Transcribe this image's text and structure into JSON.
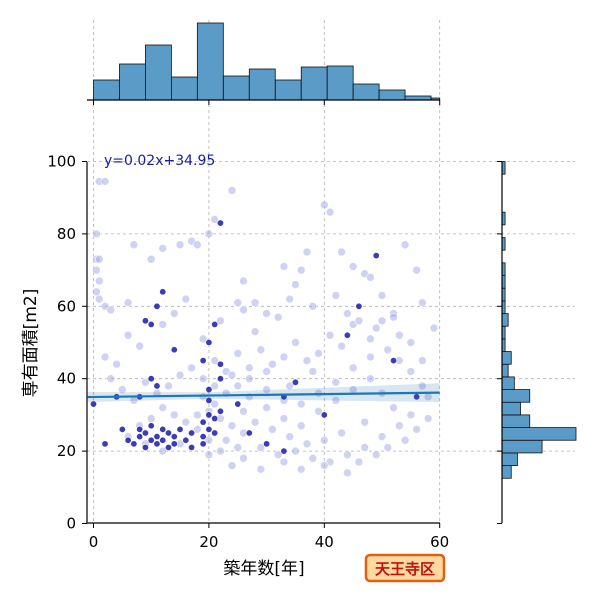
{
  "chart_data": {
    "type": "scatter",
    "xlabel": "築年数[年]",
    "ylabel": "専有面積[m2]",
    "xlim": [
      -1,
      60
    ],
    "ylim": [
      0,
      100
    ],
    "x_ticks": [
      0,
      20,
      40,
      60
    ],
    "y_ticks": [
      0,
      20,
      40,
      60,
      80,
      100
    ],
    "grid": true,
    "regression": {
      "label": "y=0.02x+34.95",
      "slope": 0.02,
      "intercept": 34.95,
      "color": "#1f77b4"
    },
    "colors": {
      "point_dark": "#1a1aa8",
      "point_light": "#a8aee6",
      "hist_fill": "#5b9bc8"
    },
    "x_hist": {
      "bin_edges": [
        0,
        4.5,
        9,
        13.5,
        18,
        22.5,
        27,
        31.5,
        36,
        40.5,
        45,
        49.5,
        54,
        58.5,
        60
      ],
      "heights": [
        20,
        36,
        55,
        23,
        77,
        24,
        31,
        20,
        33,
        34,
        16,
        10,
        4,
        2
      ]
    },
    "y_hist": {
      "bin_edges": [
        12.5,
        16,
        19.5,
        23,
        26.5,
        30,
        33.5,
        37,
        40.5,
        44,
        47.5,
        51,
        54.5,
        58,
        61.5,
        65,
        68.5,
        72,
        75.5,
        79,
        82.5,
        86,
        89.5,
        93,
        96.5,
        100
      ],
      "counts": [
        3,
        5,
        13,
        24,
        9,
        6,
        9,
        4,
        2,
        3,
        1,
        1,
        2,
        1,
        1,
        1,
        1,
        0,
        1,
        0,
        1,
        0,
        0,
        0,
        1
      ]
    },
    "points": [
      [
        1,
        94.5,
        0
      ],
      [
        2,
        94.5,
        0
      ],
      [
        0.5,
        80,
        0
      ],
      [
        0.5,
        73,
        0
      ],
      [
        1,
        73,
        0
      ],
      [
        0.5,
        70,
        0
      ],
      [
        1,
        67,
        0
      ],
      [
        0.5,
        64,
        0
      ],
      [
        1,
        62,
        0
      ],
      [
        2,
        60,
        0
      ],
      [
        3,
        59,
        0
      ],
      [
        6,
        61,
        0
      ],
      [
        7,
        77,
        0
      ],
      [
        10,
        73,
        0
      ],
      [
        12,
        76,
        0
      ],
      [
        15,
        77,
        0
      ],
      [
        17,
        78,
        0
      ],
      [
        18,
        77,
        0
      ],
      [
        20,
        80,
        0
      ],
      [
        21,
        84,
        0
      ],
      [
        24,
        92,
        0
      ],
      [
        26,
        67,
        0
      ],
      [
        25,
        61,
        0
      ],
      [
        28,
        61,
        0
      ],
      [
        30,
        58,
        0
      ],
      [
        33,
        71,
        0
      ],
      [
        35,
        66,
        0
      ],
      [
        36,
        70,
        0
      ],
      [
        37,
        75,
        0
      ],
      [
        40,
        88,
        0
      ],
      [
        41,
        86,
        0
      ],
      [
        43,
        75,
        0
      ],
      [
        45,
        71,
        0
      ],
      [
        47,
        69,
        0
      ],
      [
        48,
        68,
        0
      ],
      [
        50,
        63,
        0
      ],
      [
        52,
        58,
        0
      ],
      [
        54,
        77,
        0
      ],
      [
        56,
        70,
        0
      ],
      [
        59,
        54,
        0
      ],
      [
        57,
        61,
        0
      ],
      [
        52,
        57,
        0
      ],
      [
        48,
        51,
        0
      ],
      [
        45,
        55,
        0
      ],
      [
        43,
        49,
        0
      ],
      [
        41,
        52,
        0
      ],
      [
        39,
        47,
        0
      ],
      [
        37,
        45,
        0
      ],
      [
        35,
        50,
        0
      ],
      [
        33,
        46,
        0
      ],
      [
        31,
        44,
        0
      ],
      [
        29,
        48,
        0
      ],
      [
        27,
        43,
        0
      ],
      [
        25,
        47,
        0
      ],
      [
        23,
        42,
        0
      ],
      [
        21,
        45,
        0
      ],
      [
        19,
        40,
        0
      ],
      [
        17,
        43,
        0
      ],
      [
        15,
        41,
        0
      ],
      [
        13,
        38,
        0
      ],
      [
        11,
        36,
        0
      ],
      [
        9,
        39,
        0
      ],
      [
        7,
        34,
        0
      ],
      [
        5,
        37,
        0
      ],
      [
        3,
        40,
        0
      ],
      [
        2,
        46,
        0
      ],
      [
        4,
        44,
        0
      ],
      [
        6,
        52,
        0
      ],
      [
        8,
        49,
        0
      ],
      [
        12,
        55,
        0
      ],
      [
        14,
        58,
        0
      ],
      [
        16,
        62,
        0
      ],
      [
        19,
        51,
        0
      ],
      [
        22,
        56,
        0
      ],
      [
        26,
        59,
        0
      ],
      [
        28,
        53,
        0
      ],
      [
        32,
        57,
        0
      ],
      [
        34,
        62,
        0
      ],
      [
        38,
        60,
        0
      ],
      [
        42,
        63,
        0
      ],
      [
        44,
        58,
        0
      ],
      [
        46,
        56,
        0
      ],
      [
        49,
        54,
        0
      ],
      [
        51,
        48,
        0
      ],
      [
        53,
        45,
        0
      ],
      [
        55,
        42,
        0
      ],
      [
        57,
        38,
        0
      ],
      [
        58,
        35,
        0
      ],
      [
        55,
        30,
        0
      ],
      [
        53,
        27,
        0
      ],
      [
        50,
        24,
        0
      ],
      [
        47,
        21,
        0
      ],
      [
        44,
        19,
        0
      ],
      [
        41,
        17,
        0
      ],
      [
        38,
        18,
        0
      ],
      [
        35,
        20,
        0
      ],
      [
        32,
        19,
        0
      ],
      [
        29,
        21,
        0
      ],
      [
        26,
        18,
        0
      ],
      [
        24,
        16,
        0
      ],
      [
        22,
        20,
        0
      ],
      [
        20,
        23,
        0
      ],
      [
        18,
        26,
        0
      ],
      [
        16,
        28,
        0
      ],
      [
        14,
        30,
        0
      ],
      [
        12,
        32,
        0
      ],
      [
        10,
        29,
        0
      ],
      [
        8,
        27,
        0
      ],
      [
        6,
        24,
        0
      ],
      [
        9,
        22,
        0
      ],
      [
        12,
        20,
        0
      ],
      [
        15,
        22,
        0
      ],
      [
        18,
        30,
        0
      ],
      [
        21,
        33,
        0
      ],
      [
        23,
        36,
        0
      ],
      [
        25,
        38,
        0
      ],
      [
        27,
        35,
        0
      ],
      [
        30,
        32,
        0
      ],
      [
        33,
        29,
        0
      ],
      [
        36,
        27,
        0
      ],
      [
        39,
        31,
        0
      ],
      [
        42,
        34,
        0
      ],
      [
        45,
        37,
        0
      ],
      [
        48,
        40,
        0
      ],
      [
        50,
        36,
        0
      ],
      [
        52,
        32,
        0
      ],
      [
        47,
        28,
        0
      ],
      [
        43,
        25,
        0
      ],
      [
        40,
        23,
        0
      ],
      [
        37,
        22,
        0
      ],
      [
        34,
        24,
        0
      ],
      [
        31,
        26,
        0
      ],
      [
        28,
        28,
        0
      ],
      [
        26,
        25,
        0
      ],
      [
        24,
        27,
        0
      ],
      [
        22,
        29,
        0
      ],
      [
        20,
        31,
        0
      ],
      [
        19,
        35,
        0
      ],
      [
        21,
        38,
        0
      ],
      [
        24,
        41,
        0
      ],
      [
        27,
        40,
        0
      ],
      [
        30,
        37,
        0
      ],
      [
        33,
        34,
        0
      ],
      [
        36,
        33,
        0
      ],
      [
        39,
        36,
        0
      ],
      [
        42,
        39,
        0
      ],
      [
        45,
        43,
        0
      ],
      [
        48,
        46,
        0
      ],
      [
        38,
        42,
        0
      ],
      [
        34,
        38,
        0
      ],
      [
        30,
        42,
        0
      ],
      [
        26,
        31,
        0
      ],
      [
        23,
        23,
        0
      ],
      [
        20,
        19,
        0
      ],
      [
        25,
        21,
        0
      ],
      [
        29,
        15,
        0
      ],
      [
        33,
        17,
        0
      ],
      [
        36,
        15,
        0
      ],
      [
        40,
        16,
        0
      ],
      [
        44,
        14,
        0
      ],
      [
        46,
        17,
        0
      ],
      [
        49,
        19,
        0
      ],
      [
        51,
        21,
        0
      ],
      [
        54,
        23,
        0
      ],
      [
        56,
        26,
        0
      ],
      [
        58,
        29,
        0
      ],
      [
        57,
        45,
        0
      ],
      [
        55,
        50,
        0
      ],
      [
        53,
        52,
        0
      ],
      [
        50,
        56,
        0
      ],
      [
        2,
        22,
        1
      ],
      [
        5,
        26,
        1
      ],
      [
        6,
        23,
        1
      ],
      [
        7,
        22,
        1
      ],
      [
        8,
        24,
        1
      ],
      [
        8,
        26,
        1
      ],
      [
        9,
        21,
        1
      ],
      [
        9,
        25,
        1
      ],
      [
        10,
        23,
        1
      ],
      [
        10,
        27,
        1
      ],
      [
        11,
        22,
        1
      ],
      [
        11,
        24,
        1
      ],
      [
        12,
        26,
        1
      ],
      [
        12,
        23,
        1
      ],
      [
        13,
        21,
        1
      ],
      [
        13,
        25,
        1
      ],
      [
        14,
        22,
        1
      ],
      [
        14,
        24,
        1
      ],
      [
        15,
        26,
        1
      ],
      [
        16,
        23,
        1
      ],
      [
        17,
        21,
        1
      ],
      [
        17,
        25,
        1
      ],
      [
        19,
        22,
        1
      ],
      [
        19,
        24,
        1
      ],
      [
        19,
        28,
        1
      ],
      [
        20,
        26,
        1
      ],
      [
        20,
        30,
        1
      ],
      [
        20,
        34,
        1
      ],
      [
        20,
        37,
        1
      ],
      [
        21,
        25,
        1
      ],
      [
        21,
        29,
        1
      ],
      [
        22,
        31,
        1
      ],
      [
        22,
        40,
        1
      ],
      [
        22,
        44,
        1
      ],
      [
        19,
        45,
        1
      ],
      [
        20,
        50,
        1
      ],
      [
        21,
        55,
        1
      ],
      [
        22,
        83,
        1
      ],
      [
        9,
        56,
        1
      ],
      [
        10,
        55,
        1
      ],
      [
        11,
        60,
        1
      ],
      [
        12,
        64,
        1
      ],
      [
        14,
        48,
        1
      ],
      [
        11,
        38,
        1
      ],
      [
        8,
        35,
        1
      ],
      [
        10,
        40,
        1
      ],
      [
        25,
        33,
        1
      ],
      [
        27,
        25,
        1
      ],
      [
        30,
        22,
        1
      ],
      [
        33,
        35,
        1
      ],
      [
        35,
        39,
        1
      ],
      [
        40,
        30,
        1
      ],
      [
        44,
        52,
        1
      ],
      [
        46,
        60,
        1
      ],
      [
        49,
        74,
        1
      ],
      [
        52,
        45,
        1
      ],
      [
        56,
        35,
        1
      ],
      [
        0,
        33,
        1
      ],
      [
        4,
        35,
        1
      ],
      [
        33,
        20,
        1
      ]
    ]
  },
  "badge": {
    "text": "天王寺区"
  }
}
